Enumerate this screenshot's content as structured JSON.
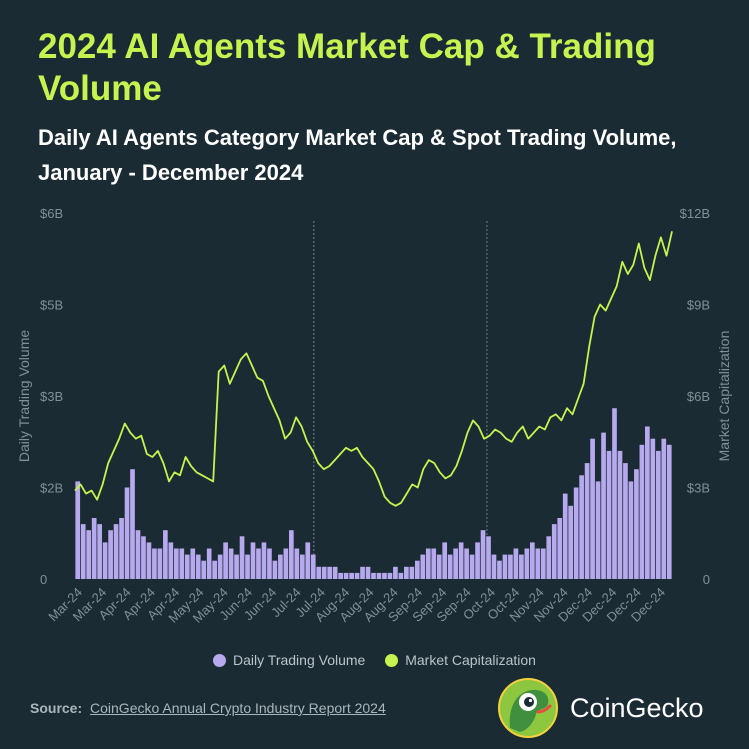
{
  "header": {
    "title": "2024 AI Agents Market Cap & Trading Volume",
    "subtitle": "Daily AI Agents Category Market Cap & Spot Trading Volume, January - December 2024"
  },
  "legend": {
    "volume_label": "Daily Trading Volume",
    "mcap_label": "Market Capitalization"
  },
  "footer": {
    "source_prefix": "Source:",
    "source_link": "CoinGecko Annual Crypto Industry Report 2024",
    "brand": "CoinGecko"
  },
  "colors": {
    "background": "#1b2b33",
    "title": "#c6f34f",
    "market_cap_line": "#c6f34f",
    "volume_bars": "#b6a9ee",
    "axis_text": "#7f9096"
  },
  "chart_data": {
    "type": "bar+line",
    "left_axis": {
      "label": "Daily Trading Volume",
      "ticks": [
        "0",
        "$2B",
        "$3B",
        "$5B",
        "$6B"
      ],
      "range_billions": [
        0,
        6
      ]
    },
    "right_axis": {
      "label": "Market Capitalization",
      "ticks": [
        "0",
        "$3B",
        "$6B",
        "$9B",
        "$12B"
      ],
      "range_billions": [
        0,
        12
      ]
    },
    "x_tick_labels": [
      "Mar-24",
      "Mar-24",
      "Apr-24",
      "Apr-24",
      "Apr-24",
      "May-24",
      "May-24",
      "Jun-24",
      "Jun-24",
      "Jul-24",
      "Jul-24",
      "Aug-24",
      "Aug-24",
      "Aug-24",
      "Sep-24",
      "Sep-24",
      "Sep-24",
      "Oct-24",
      "Oct-24",
      "Nov-24",
      "Nov-24",
      "Dec-24",
      "Dec-24",
      "Dec-24",
      "Dec-24"
    ],
    "vertical_marker_fractions": [
      0.4,
      0.69
    ],
    "series": [
      {
        "name": "Market Capitalization",
        "kind": "line",
        "unit": "USD billions",
        "values": [
          2.9,
          3.1,
          2.8,
          2.9,
          2.6,
          3.1,
          3.8,
          4.2,
          4.6,
          5.1,
          4.8,
          4.6,
          4.7,
          4.1,
          4.0,
          4.2,
          3.8,
          3.2,
          3.5,
          3.4,
          4.0,
          3.7,
          3.5,
          3.4,
          3.3,
          3.2,
          6.8,
          7.0,
          6.4,
          6.8,
          7.2,
          7.4,
          7.0,
          6.6,
          6.5,
          6.0,
          5.6,
          5.2,
          4.6,
          4.8,
          5.3,
          5.0,
          4.5,
          4.2,
          3.8,
          3.6,
          3.7,
          3.9,
          4.1,
          4.3,
          4.2,
          4.3,
          4.0,
          3.8,
          3.6,
          3.2,
          2.7,
          2.5,
          2.4,
          2.5,
          2.8,
          3.1,
          3.0,
          3.6,
          3.9,
          3.8,
          3.5,
          3.3,
          3.4,
          3.7,
          4.2,
          4.8,
          5.2,
          5.0,
          4.6,
          4.7,
          4.9,
          4.8,
          4.6,
          4.5,
          4.8,
          5.0,
          4.6,
          4.8,
          5.0,
          4.9,
          5.3,
          5.4,
          5.2,
          5.6,
          5.4,
          5.9,
          6.4,
          7.6,
          8.6,
          9.0,
          8.8,
          9.2,
          9.6,
          10.4,
          10.0,
          10.3,
          11.0,
          10.2,
          9.8,
          10.6,
          11.2,
          10.6,
          11.4
        ]
      },
      {
        "name": "Daily Trading Volume",
        "kind": "bar",
        "unit": "USD billions",
        "values": [
          1.6,
          0.9,
          0.8,
          1.0,
          0.9,
          0.6,
          0.8,
          0.9,
          1.0,
          1.5,
          1.8,
          0.8,
          0.7,
          0.6,
          0.5,
          0.5,
          0.8,
          0.6,
          0.5,
          0.5,
          0.4,
          0.5,
          0.4,
          0.3,
          0.5,
          0.3,
          0.4,
          0.6,
          0.5,
          0.4,
          0.7,
          0.4,
          0.6,
          0.5,
          0.6,
          0.5,
          0.3,
          0.4,
          0.5,
          0.8,
          0.5,
          0.4,
          0.6,
          0.4,
          0.2,
          0.2,
          0.2,
          0.2,
          0.1,
          0.1,
          0.1,
          0.1,
          0.2,
          0.2,
          0.1,
          0.1,
          0.1,
          0.1,
          0.2,
          0.1,
          0.2,
          0.2,
          0.3,
          0.4,
          0.5,
          0.5,
          0.4,
          0.6,
          0.4,
          0.5,
          0.6,
          0.5,
          0.4,
          0.6,
          0.8,
          0.7,
          0.4,
          0.3,
          0.4,
          0.4,
          0.5,
          0.4,
          0.5,
          0.6,
          0.5,
          0.5,
          0.7,
          0.9,
          1.0,
          1.4,
          1.2,
          1.5,
          1.7,
          1.9,
          2.3,
          1.6,
          2.4,
          2.1,
          2.8,
          2.1,
          1.9,
          1.6,
          1.8,
          2.2,
          2.5,
          2.3,
          2.1,
          2.3,
          2.2
        ]
      }
    ]
  }
}
